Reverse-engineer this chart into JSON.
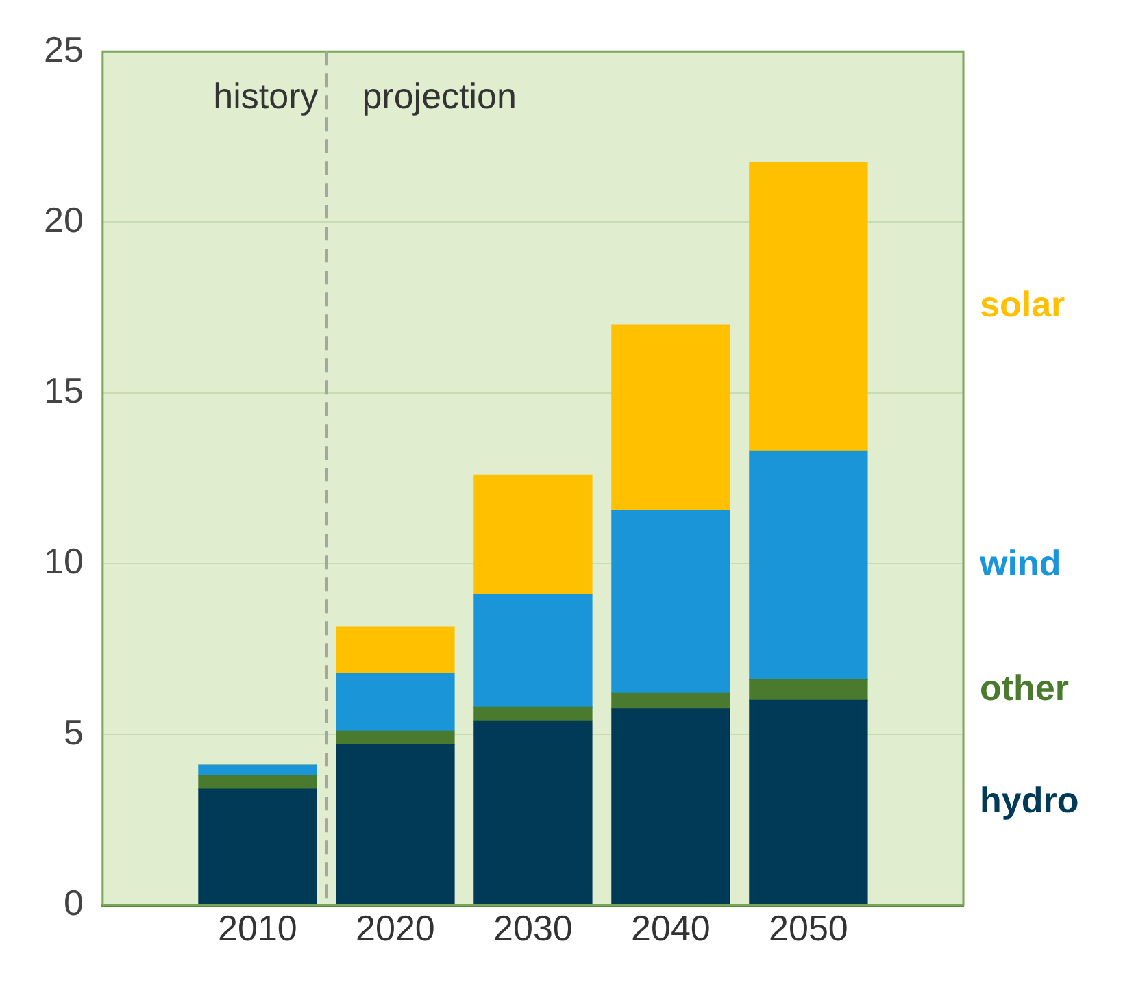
{
  "chart_data": {
    "type": "bar",
    "stacked": true,
    "x": [
      2010,
      2020,
      2030,
      2040,
      2050
    ],
    "xlim": [
      2005,
      2055
    ],
    "xticks": [
      2010,
      2020,
      2030,
      2040,
      2050
    ],
    "ylim": [
      0,
      25
    ],
    "yticks": [
      0,
      5,
      10,
      15,
      20,
      25
    ],
    "grid": "y",
    "legend": false,
    "series": [
      {
        "name": "hydro",
        "color": "#003a56",
        "values": [
          3.4,
          4.7,
          5.4,
          5.75,
          6.0
        ]
      },
      {
        "name": "other",
        "color": "#4a7a2e",
        "values": [
          0.4,
          0.4,
          0.4,
          0.45,
          0.6
        ]
      },
      {
        "name": "wind",
        "color": "#1a96d8",
        "values": [
          0.3,
          1.7,
          3.3,
          5.35,
          6.7
        ]
      },
      {
        "name": "solar",
        "color": "#ffc000",
        "values": [
          0,
          1.35,
          3.5,
          5.45,
          8.45
        ]
      }
    ],
    "ref_lines": [
      {
        "axis": "x",
        "value": 2015,
        "color": "#a0a8a0",
        "line_style": "dashed"
      }
    ],
    "annotations": [
      "history",
      "projection"
    ]
  }
}
